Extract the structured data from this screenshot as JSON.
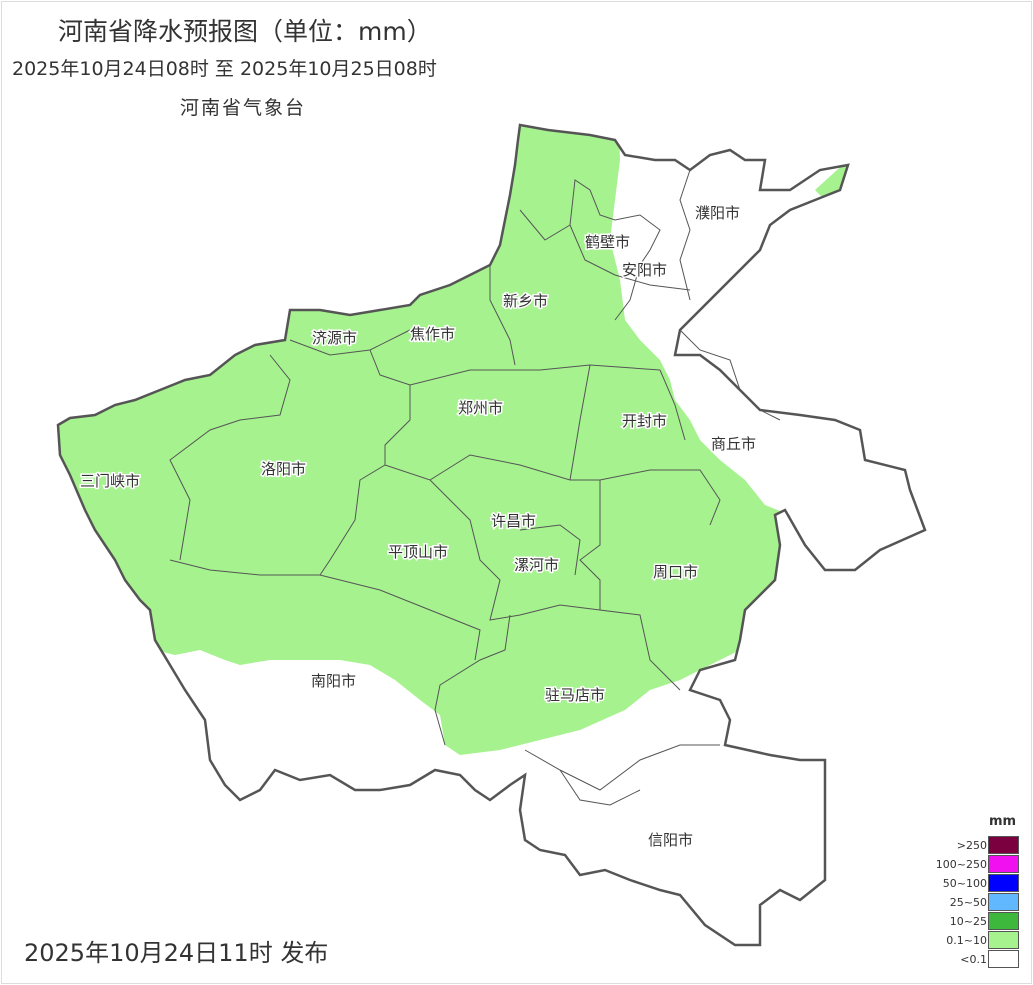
{
  "header": {
    "title": "河南省降水预报图（单位：mm）",
    "period": "2025年10月24日08时  至  2025年10月25日08时",
    "organization": "河南省气象台"
  },
  "footer": {
    "issued": "2025年10月24日11时 发布"
  },
  "map": {
    "region": "河南省",
    "forecast_fill_color": "#a6f28f",
    "no_rain_color": "#ffffff",
    "cities": [
      "濮阳市",
      "鹤壁市",
      "安阳市",
      "新乡市",
      "焦作市",
      "济源市",
      "郑州市",
      "开封市",
      "商丘市",
      "三门峡市",
      "洛阳市",
      "许昌市",
      "平顶山市",
      "漯河市",
      "周口市",
      "南阳市",
      "驻马店市",
      "信阳市"
    ]
  },
  "legend": {
    "unit": "mm",
    "items": [
      {
        "label": ">250",
        "color": "#7a0040"
      },
      {
        "label": "100~250",
        "color": "#f010f0"
      },
      {
        "label": "50~100",
        "color": "#0000fe"
      },
      {
        "label": "25~50",
        "color": "#62b8ff"
      },
      {
        "label": "10~25",
        "color": "#3db83d"
      },
      {
        "label": "0.1~10",
        "color": "#a6f28f"
      },
      {
        "label": "<0.1",
        "color": "#ffffff"
      }
    ]
  }
}
